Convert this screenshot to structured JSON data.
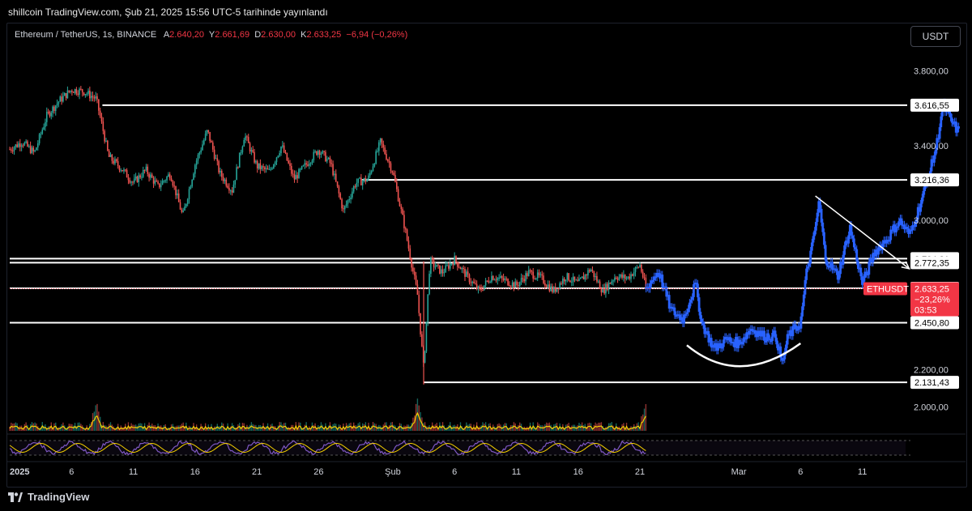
{
  "header": {
    "published": "shillcoin TradingView.com, Şub 21, 2025 15:56 UTC-5 tarihinde yayınlandı"
  },
  "legend": {
    "symbol": "Ethereum / TetherUS, 1s, BINANCE",
    "open_key": "A",
    "open": "2.640,20",
    "high_key": "Y",
    "high": "2.661,69",
    "low_key": "D",
    "low": "2.630,00",
    "close_key": "K",
    "close": "2.633,25",
    "change": "−6,94 (−0,26%)"
  },
  "currency_button": "USDT",
  "footer": {
    "brand": "TradingView"
  },
  "colors": {
    "up": "#26a69a",
    "down": "#ef5350",
    "projection": "#2962ff",
    "level_line": "#ffffff",
    "current_price": "#f23645",
    "rsi": "#7e57c2",
    "volume_ma": "#f5d000"
  },
  "chart_data": {
    "type": "candlestick",
    "symbol": "ETHUSDT",
    "y_axis": {
      "ylim": [
        1880,
        3920
      ],
      "ticks": [
        {
          "value": 3800,
          "label": "3.800,00"
        },
        {
          "value": 3400,
          "label": "3.400,00"
        },
        {
          "value": 3000,
          "label": "3.000,00"
        },
        {
          "value": 2200,
          "label": "2.200,00"
        },
        {
          "value": 2000,
          "label": "2.000,00"
        }
      ]
    },
    "x_axis": {
      "range_days": [
        0,
        72.5
      ],
      "ticks": [
        {
          "day": 0,
          "label": "2025"
        },
        {
          "day": 5,
          "label": "6"
        },
        {
          "day": 10,
          "label": "11"
        },
        {
          "day": 15,
          "label": "16"
        },
        {
          "day": 20,
          "label": "21"
        },
        {
          "day": 25,
          "label": "26"
        },
        {
          "day": 31,
          "label": "Şub"
        },
        {
          "day": 36,
          "label": "6"
        },
        {
          "day": 41,
          "label": "11"
        },
        {
          "day": 46,
          "label": "16"
        },
        {
          "day": 51,
          "label": "21"
        },
        {
          "day": 59,
          "label": "Mar"
        },
        {
          "day": 64,
          "label": "6"
        },
        {
          "day": 69,
          "label": "11"
        }
      ]
    },
    "horizontal_levels": [
      {
        "value": 3616.55,
        "label": "3.616,55",
        "from_day": 7.5
      },
      {
        "value": 3216.36,
        "label": "3.216,36",
        "from_day": 28.5
      },
      {
        "value": 2794.31,
        "label": "2.794,31",
        "from_day": 0
      },
      {
        "value": 2772.35,
        "label": "2.772,35",
        "from_day": 0
      },
      {
        "value": 2635.24,
        "label": "2.635,24",
        "from_day": 0
      },
      {
        "value": 2450.8,
        "label": "2.450,80",
        "from_day": 0
      },
      {
        "value": 2131.43,
        "label": "2.131,43",
        "from_day": 33.5
      }
    ],
    "current_price": {
      "symbol_tag": "ETHUSDT",
      "value": 2633.25,
      "label": "2.633,25",
      "change": "−23,26%",
      "countdown": "03:53"
    },
    "price_path": [
      [
        0,
        3380
      ],
      [
        1,
        3420
      ],
      [
        2,
        3360
      ],
      [
        3,
        3560
      ],
      [
        4,
        3640
      ],
      [
        5,
        3700
      ],
      [
        6,
        3690
      ],
      [
        7,
        3650
      ],
      [
        7.5,
        3500
      ],
      [
        8,
        3340
      ],
      [
        9,
        3280
      ],
      [
        10,
        3200
      ],
      [
        11,
        3270
      ],
      [
        12,
        3180
      ],
      [
        13,
        3250
      ],
      [
        14,
        3020
      ],
      [
        15,
        3300
      ],
      [
        16,
        3480
      ],
      [
        17,
        3250
      ],
      [
        18,
        3160
      ],
      [
        19,
        3460
      ],
      [
        20,
        3290
      ],
      [
        21,
        3260
      ],
      [
        22,
        3400
      ],
      [
        23,
        3220
      ],
      [
        24,
        3300
      ],
      [
        25,
        3380
      ],
      [
        26,
        3300
      ],
      [
        27,
        3050
      ],
      [
        28,
        3200
      ],
      [
        29,
        3220
      ],
      [
        30,
        3420
      ],
      [
        31,
        3260
      ],
      [
        32,
        2950
      ],
      [
        33,
        2600
      ],
      [
        33.5,
        2200
      ],
      [
        34,
        2780
      ],
      [
        35,
        2720
      ],
      [
        36,
        2790
      ],
      [
        37,
        2700
      ],
      [
        38,
        2620
      ],
      [
        39,
        2700
      ],
      [
        40,
        2680
      ],
      [
        41,
        2650
      ],
      [
        42,
        2720
      ],
      [
        43,
        2690
      ],
      [
        44,
        2620
      ],
      [
        45,
        2700
      ],
      [
        46,
        2660
      ],
      [
        47,
        2740
      ],
      [
        48,
        2620
      ],
      [
        49,
        2700
      ],
      [
        50,
        2690
      ],
      [
        51,
        2760
      ],
      [
        51.5,
        2633
      ]
    ],
    "projection_path": [
      [
        51.5,
        2633
      ],
      [
        52.5,
        2730
      ],
      [
        53.5,
        2520
      ],
      [
        54.5,
        2470
      ],
      [
        55.5,
        2660
      ],
      [
        56,
        2450
      ],
      [
        57,
        2310
      ],
      [
        58,
        2360
      ],
      [
        59,
        2340
      ],
      [
        60,
        2420
      ],
      [
        61,
        2380
      ],
      [
        62,
        2380
      ],
      [
        62.5,
        2230
      ],
      [
        63,
        2380
      ],
      [
        64,
        2450
      ],
      [
        64.5,
        2730
      ],
      [
        65,
        2880
      ],
      [
        65.5,
        3100
      ],
      [
        66,
        2800
      ],
      [
        67,
        2700
      ],
      [
        68,
        2960
      ],
      [
        69,
        2660
      ],
      [
        70,
        2830
      ],
      [
        71,
        2900
      ],
      [
        72,
        3000
      ],
      [
        72.8,
        2920
      ],
      [
        73.5,
        3050
      ],
      [
        74.3,
        3220
      ],
      [
        75,
        3400
      ],
      [
        75.5,
        3616
      ],
      [
        76.2,
        3530
      ],
      [
        76.8,
        3470
      ]
    ],
    "annotations": [
      {
        "type": "trendline_arrow",
        "points": [
          [
            65.2,
            3130
          ],
          [
            72.8,
            2740
          ]
        ]
      },
      {
        "type": "rounded_bottom_arc"
      }
    ],
    "volume": {
      "ma_color": "#f5d000",
      "spike_days": [
        7,
        33,
        51.5
      ]
    },
    "rsi": {
      "color": "#7e57c2",
      "band": [
        30,
        70
      ]
    }
  }
}
